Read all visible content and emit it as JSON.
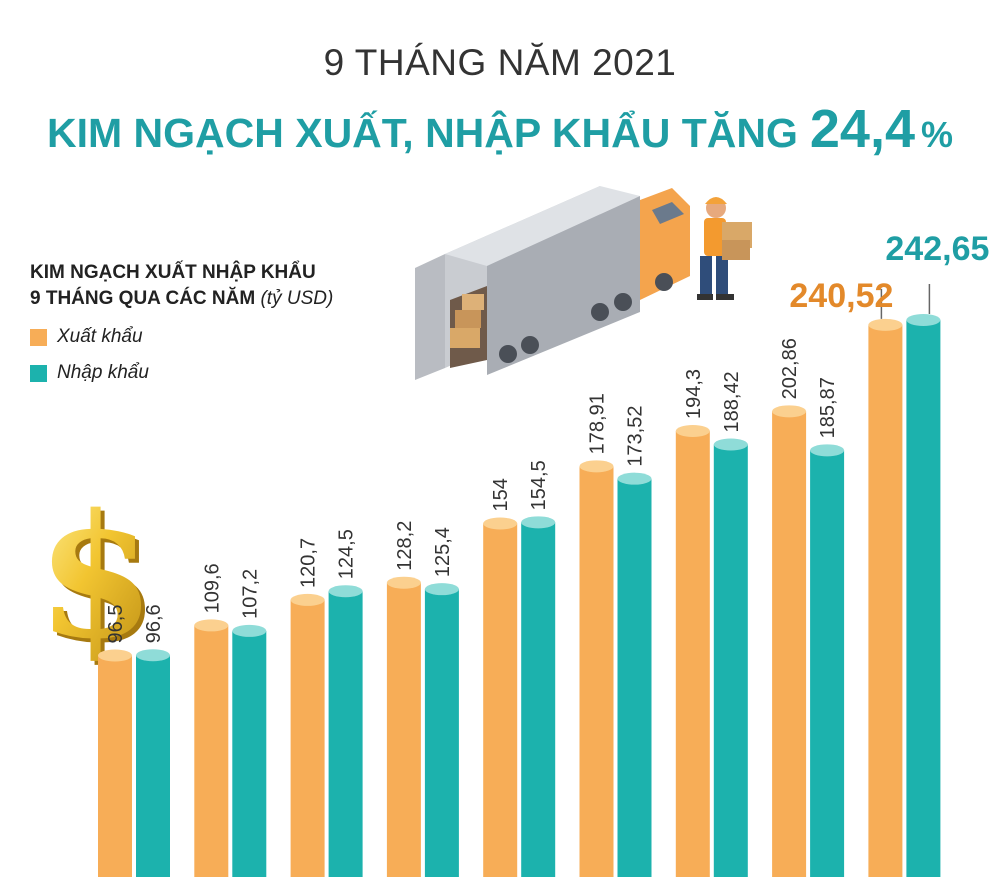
{
  "header": {
    "supertitle": "9 THÁNG NĂM 2021",
    "headline": "KIM NGẠCH XUẤT, NHẬP KHẨU TĂNG",
    "headline_value": "24,4",
    "headline_unit": "%"
  },
  "legend": {
    "title_line1": "KIM NGẠCH XUẤT NHẬP KHẨU",
    "title_line2": "9 THÁNG QUA CÁC NĂM",
    "unit": "(tỷ USD)",
    "items": [
      "Xuất khẩu",
      "Nhập khẩu"
    ]
  },
  "colors": {
    "export": "#f7ad57",
    "import": "#1cb2ad",
    "title": "#1f9ea4",
    "export_label": "#e3892a"
  },
  "icons": [
    "dollar-icon",
    "truck-icon",
    "worker-icon"
  ],
  "chart_data": {
    "type": "bar",
    "categories": [
      "",
      "",
      "",
      "",
      "",
      "",
      "",
      "",
      ""
    ],
    "series": [
      {
        "name": "Xuất khẩu",
        "values": [
          96.5,
          109.6,
          120.7,
          128.2,
          154,
          178.91,
          194.3,
          202.86,
          240.52
        ],
        "labels": [
          "96,5",
          "109,6",
          "120,7",
          "128,2",
          "154",
          "178,91",
          "194,3",
          "202,86",
          "240,52"
        ]
      },
      {
        "name": "Nhập khẩu",
        "values": [
          96.6,
          107.2,
          124.5,
          125.4,
          154.5,
          173.52,
          188.42,
          185.87,
          242.65
        ],
        "labels": [
          "96,6",
          "107,2",
          "124,5",
          "125,4",
          "154,5",
          "173,52",
          "188,42",
          "185,87",
          "242,65"
        ]
      }
    ],
    "title": "KIM NGẠCH XUẤT NHẬP KHẨU 9 THÁNG QUA CÁC NĂM (tỷ USD)",
    "xlabel": "",
    "ylabel": "",
    "ylim": [
      0,
      250
    ],
    "grid": false,
    "legend": "top-left"
  }
}
